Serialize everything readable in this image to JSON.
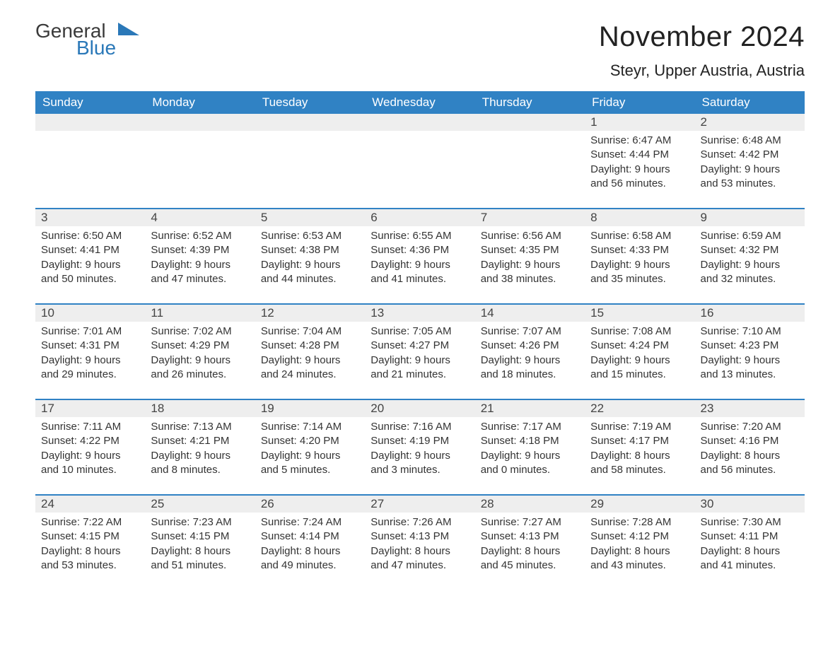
{
  "logo": {
    "word1": "General",
    "word2": "Blue"
  },
  "title": "November 2024",
  "location": "Steyr, Upper Austria, Austria",
  "colors": {
    "header_bg": "#3082c4",
    "header_text": "#ffffff",
    "daynum_bg": "#eeeeee",
    "row_border": "#3082c4",
    "logo_blue": "#2a78b8",
    "body_bg": "#ffffff",
    "text": "#333333"
  },
  "typography": {
    "title_fontsize": 40,
    "location_fontsize": 22,
    "header_fontsize": 17,
    "daynum_fontsize": 17,
    "body_fontsize": 15
  },
  "layout": {
    "columns": 7,
    "rows": 5,
    "start_day_index": 5
  },
  "dayHeaders": [
    "Sunday",
    "Monday",
    "Tuesday",
    "Wednesday",
    "Thursday",
    "Friday",
    "Saturday"
  ],
  "weeks": [
    [
      {
        "day": "",
        "sunrise": "",
        "sunset": "",
        "daylight": ""
      },
      {
        "day": "",
        "sunrise": "",
        "sunset": "",
        "daylight": ""
      },
      {
        "day": "",
        "sunrise": "",
        "sunset": "",
        "daylight": ""
      },
      {
        "day": "",
        "sunrise": "",
        "sunset": "",
        "daylight": ""
      },
      {
        "day": "",
        "sunrise": "",
        "sunset": "",
        "daylight": ""
      },
      {
        "day": "1",
        "sunrise": "Sunrise: 6:47 AM",
        "sunset": "Sunset: 4:44 PM",
        "daylight": "Daylight: 9 hours and 56 minutes."
      },
      {
        "day": "2",
        "sunrise": "Sunrise: 6:48 AM",
        "sunset": "Sunset: 4:42 PM",
        "daylight": "Daylight: 9 hours and 53 minutes."
      }
    ],
    [
      {
        "day": "3",
        "sunrise": "Sunrise: 6:50 AM",
        "sunset": "Sunset: 4:41 PM",
        "daylight": "Daylight: 9 hours and 50 minutes."
      },
      {
        "day": "4",
        "sunrise": "Sunrise: 6:52 AM",
        "sunset": "Sunset: 4:39 PM",
        "daylight": "Daylight: 9 hours and 47 minutes."
      },
      {
        "day": "5",
        "sunrise": "Sunrise: 6:53 AM",
        "sunset": "Sunset: 4:38 PM",
        "daylight": "Daylight: 9 hours and 44 minutes."
      },
      {
        "day": "6",
        "sunrise": "Sunrise: 6:55 AM",
        "sunset": "Sunset: 4:36 PM",
        "daylight": "Daylight: 9 hours and 41 minutes."
      },
      {
        "day": "7",
        "sunrise": "Sunrise: 6:56 AM",
        "sunset": "Sunset: 4:35 PM",
        "daylight": "Daylight: 9 hours and 38 minutes."
      },
      {
        "day": "8",
        "sunrise": "Sunrise: 6:58 AM",
        "sunset": "Sunset: 4:33 PM",
        "daylight": "Daylight: 9 hours and 35 minutes."
      },
      {
        "day": "9",
        "sunrise": "Sunrise: 6:59 AM",
        "sunset": "Sunset: 4:32 PM",
        "daylight": "Daylight: 9 hours and 32 minutes."
      }
    ],
    [
      {
        "day": "10",
        "sunrise": "Sunrise: 7:01 AM",
        "sunset": "Sunset: 4:31 PM",
        "daylight": "Daylight: 9 hours and 29 minutes."
      },
      {
        "day": "11",
        "sunrise": "Sunrise: 7:02 AM",
        "sunset": "Sunset: 4:29 PM",
        "daylight": "Daylight: 9 hours and 26 minutes."
      },
      {
        "day": "12",
        "sunrise": "Sunrise: 7:04 AM",
        "sunset": "Sunset: 4:28 PM",
        "daylight": "Daylight: 9 hours and 24 minutes."
      },
      {
        "day": "13",
        "sunrise": "Sunrise: 7:05 AM",
        "sunset": "Sunset: 4:27 PM",
        "daylight": "Daylight: 9 hours and 21 minutes."
      },
      {
        "day": "14",
        "sunrise": "Sunrise: 7:07 AM",
        "sunset": "Sunset: 4:26 PM",
        "daylight": "Daylight: 9 hours and 18 minutes."
      },
      {
        "day": "15",
        "sunrise": "Sunrise: 7:08 AM",
        "sunset": "Sunset: 4:24 PM",
        "daylight": "Daylight: 9 hours and 15 minutes."
      },
      {
        "day": "16",
        "sunrise": "Sunrise: 7:10 AM",
        "sunset": "Sunset: 4:23 PM",
        "daylight": "Daylight: 9 hours and 13 minutes."
      }
    ],
    [
      {
        "day": "17",
        "sunrise": "Sunrise: 7:11 AM",
        "sunset": "Sunset: 4:22 PM",
        "daylight": "Daylight: 9 hours and 10 minutes."
      },
      {
        "day": "18",
        "sunrise": "Sunrise: 7:13 AM",
        "sunset": "Sunset: 4:21 PM",
        "daylight": "Daylight: 9 hours and 8 minutes."
      },
      {
        "day": "19",
        "sunrise": "Sunrise: 7:14 AM",
        "sunset": "Sunset: 4:20 PM",
        "daylight": "Daylight: 9 hours and 5 minutes."
      },
      {
        "day": "20",
        "sunrise": "Sunrise: 7:16 AM",
        "sunset": "Sunset: 4:19 PM",
        "daylight": "Daylight: 9 hours and 3 minutes."
      },
      {
        "day": "21",
        "sunrise": "Sunrise: 7:17 AM",
        "sunset": "Sunset: 4:18 PM",
        "daylight": "Daylight: 9 hours and 0 minutes."
      },
      {
        "day": "22",
        "sunrise": "Sunrise: 7:19 AM",
        "sunset": "Sunset: 4:17 PM",
        "daylight": "Daylight: 8 hours and 58 minutes."
      },
      {
        "day": "23",
        "sunrise": "Sunrise: 7:20 AM",
        "sunset": "Sunset: 4:16 PM",
        "daylight": "Daylight: 8 hours and 56 minutes."
      }
    ],
    [
      {
        "day": "24",
        "sunrise": "Sunrise: 7:22 AM",
        "sunset": "Sunset: 4:15 PM",
        "daylight": "Daylight: 8 hours and 53 minutes."
      },
      {
        "day": "25",
        "sunrise": "Sunrise: 7:23 AM",
        "sunset": "Sunset: 4:15 PM",
        "daylight": "Daylight: 8 hours and 51 minutes."
      },
      {
        "day": "26",
        "sunrise": "Sunrise: 7:24 AM",
        "sunset": "Sunset: 4:14 PM",
        "daylight": "Daylight: 8 hours and 49 minutes."
      },
      {
        "day": "27",
        "sunrise": "Sunrise: 7:26 AM",
        "sunset": "Sunset: 4:13 PM",
        "daylight": "Daylight: 8 hours and 47 minutes."
      },
      {
        "day": "28",
        "sunrise": "Sunrise: 7:27 AM",
        "sunset": "Sunset: 4:13 PM",
        "daylight": "Daylight: 8 hours and 45 minutes."
      },
      {
        "day": "29",
        "sunrise": "Sunrise: 7:28 AM",
        "sunset": "Sunset: 4:12 PM",
        "daylight": "Daylight: 8 hours and 43 minutes."
      },
      {
        "day": "30",
        "sunrise": "Sunrise: 7:30 AM",
        "sunset": "Sunset: 4:11 PM",
        "daylight": "Daylight: 8 hours and 41 minutes."
      }
    ]
  ]
}
